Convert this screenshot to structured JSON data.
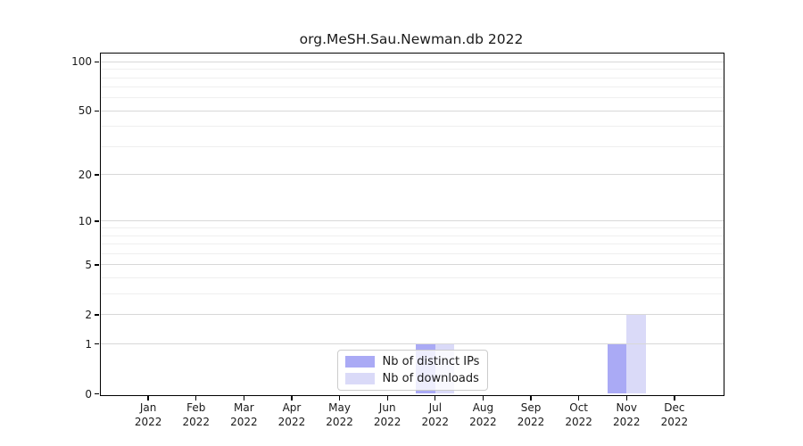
{
  "chart": {
    "title": "org.MeSH.Sau.Newman.db 2022"
  },
  "chart_data": {
    "type": "bar",
    "title": "org.MeSH.Sau.Newman.db 2022",
    "categories": [
      "Jan 2022",
      "Feb 2022",
      "Mar 2022",
      "Apr 2022",
      "May 2022",
      "Jun 2022",
      "Jul 2022",
      "Aug 2022",
      "Sep 2022",
      "Oct 2022",
      "Nov 2022",
      "Dec 2022"
    ],
    "series": [
      {
        "name": "Nb of distinct IPs",
        "color": "#aaaaf5",
        "values": [
          0,
          0,
          0,
          0,
          0,
          0,
          1,
          0,
          0,
          0,
          1,
          0
        ]
      },
      {
        "name": "Nb of downloads",
        "color": "#dadaf8",
        "values": [
          0,
          0,
          0,
          0,
          0,
          0,
          1,
          0,
          0,
          0,
          2,
          0
        ]
      }
    ],
    "xlabel": "",
    "ylabel": "",
    "yscale": "log1p",
    "ylim": [
      0,
      113
    ],
    "yticks": [
      0,
      1,
      2,
      5,
      10,
      20,
      50,
      100
    ],
    "ytick_labels": [
      "0",
      "1",
      "2",
      "5",
      "10",
      "20",
      "50",
      "100"
    ],
    "minor_yticks": [
      3,
      4,
      6,
      7,
      8,
      9,
      30,
      40,
      60,
      70,
      80,
      90,
      110
    ],
    "grid": "horizontal",
    "grid_above_bars": true,
    "legend_position": "lower center",
    "bar_width_fraction": 0.4
  },
  "colors": {
    "bar_distinct_ips": "#aaaaf5",
    "bar_downloads": "#dadaf8",
    "grid_major": "#d8d8d8",
    "grid_minor": "#efefef",
    "spine": "#000000",
    "legend_border": "#cccccc",
    "legend_background": "rgba(255,255,255,0.8)",
    "text": "#1a1a1a"
  }
}
